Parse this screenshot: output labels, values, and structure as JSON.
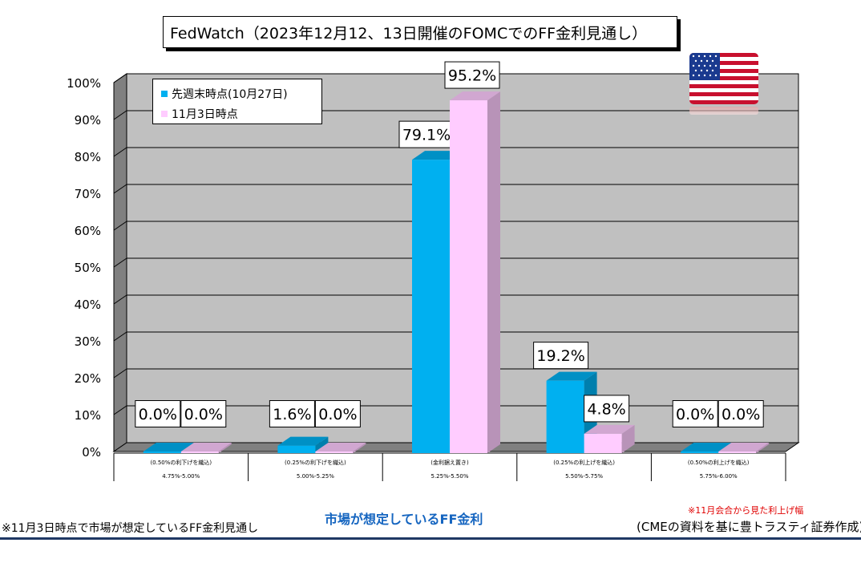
{
  "title": "FedWatch（2023年12月12、13日開催のFOMCでのFF金利見通し）",
  "chart_data": {
    "type": "bar",
    "ylim": [
      0,
      100
    ],
    "yticks": [
      "0%",
      "10%",
      "20%",
      "30%",
      "40%",
      "50%",
      "60%",
      "70%",
      "80%",
      "90%",
      "100%"
    ],
    "grid": true,
    "legend_position": "top-left",
    "categories": [
      {
        "note": "(0.50%の利下げを織込)",
        "range": "4.75%-5.00%"
      },
      {
        "note": "(0.25%の利下げを織込)",
        "range": "5.00%-5.25%"
      },
      {
        "note": "(金利据え置き)",
        "range": "5.25%-5.50%"
      },
      {
        "note": "(0.25%の利上げを織込)",
        "range": "5.50%-5.75%"
      },
      {
        "note": "(0.50%の利上げを織込)",
        "range": "5.75%-6.00%"
      }
    ],
    "series": [
      {
        "name": "先週末時点(10月27日)",
        "color": "#00b0f0",
        "values": [
          0.0,
          1.6,
          79.1,
          19.2,
          0.0
        ],
        "labels": [
          "0.0%",
          "1.6%",
          "79.1%",
          "19.2%",
          "0.0%"
        ]
      },
      {
        "name": "11月3日時点",
        "color": "#ffccff",
        "values": [
          0.0,
          0.0,
          95.2,
          4.8,
          0.0
        ],
        "labels": [
          "0.0%",
          "0.0%",
          "95.2%",
          "4.8%",
          "0.0%"
        ]
      }
    ]
  },
  "flag": {
    "icon": "us-flag-icon"
  },
  "footer": {
    "left_note": "※11月3日時点で市場が想定しているFF金利見通し",
    "xlabel": "市場が想定しているFF金利",
    "red_note": "※11月会合から見た利上げ幅",
    "source": "(CMEの資料を基に豊トラスティ証券作成)"
  }
}
